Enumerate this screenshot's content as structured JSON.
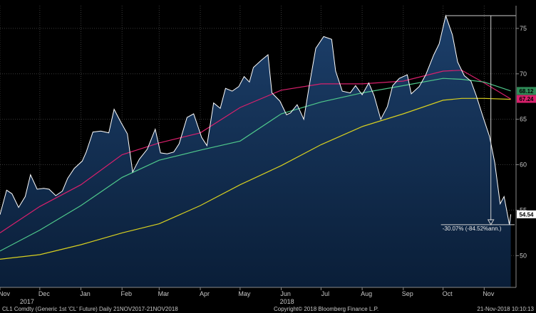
{
  "chart_data": {
    "type": "line",
    "xlim": [
      "2017-11-01",
      "2018-11-25"
    ],
    "ylim": [
      46.5,
      77.5
    ],
    "y_ticks": [
      50,
      55,
      60,
      65,
      70,
      75
    ],
    "y_tick_labels": [
      "50",
      "55",
      "60",
      "65",
      "70",
      "75"
    ],
    "x_ticks": [
      {
        "label": "Nov",
        "date": "2017-11-01"
      },
      {
        "label": "Dec",
        "date": "2017-12-01"
      },
      {
        "label": "Jan",
        "date": "2018-01-01"
      },
      {
        "label": "Feb",
        "date": "2018-02-01"
      },
      {
        "label": "Mar",
        "date": "2018-03-01"
      },
      {
        "label": "Apr",
        "date": "2018-04-01"
      },
      {
        "label": "May",
        "date": "2018-05-01"
      },
      {
        "label": "Jun",
        "date": "2018-06-01"
      },
      {
        "label": "Jul",
        "date": "2018-07-01"
      },
      {
        "label": "Aug",
        "date": "2018-08-01"
      },
      {
        "label": "Sep",
        "date": "2018-09-01"
      },
      {
        "label": "Oct",
        "date": "2018-10-01"
      },
      {
        "label": "Nov",
        "date": "2018-11-01"
      }
    ],
    "year_labels": [
      {
        "label": "2017",
        "date": "2017-12-01"
      },
      {
        "label": "2018",
        "date": "2018-06-15"
      }
    ],
    "grid": true,
    "y_axis_position": "right",
    "colors": {
      "price": "#ffffff",
      "fill_top": "#1c3f6a",
      "fill_bottom": "#0a1e38",
      "ma_pink": "#d8206c",
      "ma_green": "#4fc98c",
      "ma_yellow": "#d8d020",
      "grid": "#3a3a3a"
    },
    "series": [
      {
        "key": "price",
        "points": [
          [
            "2017-11-01",
            54.5
          ],
          [
            "2017-11-06",
            57.2
          ],
          [
            "2017-11-10",
            56.8
          ],
          [
            "2017-11-15",
            55.3
          ],
          [
            "2017-11-20",
            56.5
          ],
          [
            "2017-11-24",
            58.9
          ],
          [
            "2017-11-29",
            57.3
          ],
          [
            "2017-12-04",
            57.4
          ],
          [
            "2017-12-08",
            57.3
          ],
          [
            "2017-12-13",
            56.6
          ],
          [
            "2017-12-18",
            57.1
          ],
          [
            "2017-12-22",
            58.5
          ],
          [
            "2017-12-27",
            59.6
          ],
          [
            "2018-01-02",
            60.4
          ],
          [
            "2018-01-05",
            61.4
          ],
          [
            "2018-01-10",
            63.6
          ],
          [
            "2018-01-16",
            63.7
          ],
          [
            "2018-01-22",
            63.5
          ],
          [
            "2018-01-26",
            66.1
          ],
          [
            "2018-01-31",
            64.7
          ],
          [
            "2018-02-05",
            63.4
          ],
          [
            "2018-02-09",
            59.2
          ],
          [
            "2018-02-14",
            60.6
          ],
          [
            "2018-02-20",
            61.7
          ],
          [
            "2018-02-26",
            63.9
          ],
          [
            "2018-03-02",
            61.3
          ],
          [
            "2018-03-07",
            61.2
          ],
          [
            "2018-03-12",
            61.4
          ],
          [
            "2018-03-16",
            62.3
          ],
          [
            "2018-03-22",
            65.2
          ],
          [
            "2018-03-27",
            65.6
          ],
          [
            "2018-04-02",
            63.0
          ],
          [
            "2018-04-06",
            62.1
          ],
          [
            "2018-04-11",
            66.8
          ],
          [
            "2018-04-16",
            66.2
          ],
          [
            "2018-04-20",
            68.4
          ],
          [
            "2018-04-25",
            68.1
          ],
          [
            "2018-04-30",
            68.6
          ],
          [
            "2018-05-04",
            69.7
          ],
          [
            "2018-05-08",
            69.1
          ],
          [
            "2018-05-11",
            70.7
          ],
          [
            "2018-05-17",
            71.5
          ],
          [
            "2018-05-22",
            72.1
          ],
          [
            "2018-05-25",
            67.9
          ],
          [
            "2018-05-31",
            67.0
          ],
          [
            "2018-06-05",
            65.5
          ],
          [
            "2018-06-08",
            65.7
          ],
          [
            "2018-06-13",
            66.6
          ],
          [
            "2018-06-18",
            65.0
          ],
          [
            "2018-06-22",
            68.6
          ],
          [
            "2018-06-27",
            72.8
          ],
          [
            "2018-07-03",
            74.1
          ],
          [
            "2018-07-09",
            73.8
          ],
          [
            "2018-07-12",
            70.3
          ],
          [
            "2018-07-17",
            68.1
          ],
          [
            "2018-07-23",
            67.9
          ],
          [
            "2018-07-27",
            68.7
          ],
          [
            "2018-08-01",
            67.7
          ],
          [
            "2018-08-06",
            69.0
          ],
          [
            "2018-08-10",
            67.6
          ],
          [
            "2018-08-15",
            65.0
          ],
          [
            "2018-08-20",
            66.4
          ],
          [
            "2018-08-24",
            68.7
          ],
          [
            "2018-08-29",
            69.5
          ],
          [
            "2018-09-04",
            69.9
          ],
          [
            "2018-09-07",
            67.8
          ],
          [
            "2018-09-13",
            68.6
          ],
          [
            "2018-09-18",
            69.9
          ],
          [
            "2018-09-24",
            72.1
          ],
          [
            "2018-09-28",
            73.3
          ],
          [
            "2018-10-03",
            76.4
          ],
          [
            "2018-10-08",
            74.3
          ],
          [
            "2018-10-12",
            71.3
          ],
          [
            "2018-10-17",
            69.8
          ],
          [
            "2018-10-22",
            69.2
          ],
          [
            "2018-10-26",
            67.6
          ],
          [
            "2018-10-31",
            65.3
          ],
          [
            "2018-11-05",
            63.1
          ],
          [
            "2018-11-09",
            60.2
          ],
          [
            "2018-11-13",
            55.7
          ],
          [
            "2018-11-16",
            56.5
          ],
          [
            "2018-11-20",
            53.4
          ],
          [
            "2018-11-21",
            54.54
          ]
        ]
      },
      {
        "key": "ma_pink",
        "points": [
          [
            "2017-11-01",
            52.5
          ],
          [
            "2017-12-01",
            55.4
          ],
          [
            "2018-01-01",
            57.8
          ],
          [
            "2018-02-01",
            61.1
          ],
          [
            "2018-03-01",
            62.4
          ],
          [
            "2018-04-01",
            63.5
          ],
          [
            "2018-05-01",
            66.3
          ],
          [
            "2018-06-01",
            68.2
          ],
          [
            "2018-07-01",
            68.9
          ],
          [
            "2018-08-01",
            68.9
          ],
          [
            "2018-09-01",
            69.2
          ],
          [
            "2018-10-01",
            70.3
          ],
          [
            "2018-10-15",
            70.4
          ],
          [
            "2018-11-01",
            69.0
          ],
          [
            "2018-11-21",
            67.24
          ]
        ]
      },
      {
        "key": "ma_green",
        "points": [
          [
            "2017-11-01",
            50.5
          ],
          [
            "2017-12-01",
            52.8
          ],
          [
            "2018-01-01",
            55.5
          ],
          [
            "2018-02-01",
            58.6
          ],
          [
            "2018-03-01",
            60.5
          ],
          [
            "2018-04-01",
            61.6
          ],
          [
            "2018-05-01",
            62.6
          ],
          [
            "2018-06-01",
            65.6
          ],
          [
            "2018-07-01",
            66.9
          ],
          [
            "2018-08-01",
            67.9
          ],
          [
            "2018-09-01",
            68.7
          ],
          [
            "2018-10-01",
            69.5
          ],
          [
            "2018-10-15",
            69.4
          ],
          [
            "2018-11-01",
            69.1
          ],
          [
            "2018-11-21",
            68.12
          ]
        ]
      },
      {
        "key": "ma_yellow",
        "points": [
          [
            "2017-11-01",
            49.6
          ],
          [
            "2017-12-01",
            50.1
          ],
          [
            "2018-01-01",
            51.2
          ],
          [
            "2018-02-01",
            52.5
          ],
          [
            "2018-03-01",
            53.5
          ],
          [
            "2018-04-01",
            55.5
          ],
          [
            "2018-05-01",
            57.8
          ],
          [
            "2018-06-01",
            59.9
          ],
          [
            "2018-07-01",
            62.2
          ],
          [
            "2018-08-01",
            64.2
          ],
          [
            "2018-09-01",
            65.6
          ],
          [
            "2018-10-01",
            67.1
          ],
          [
            "2018-10-15",
            67.3
          ],
          [
            "2018-11-01",
            67.3
          ],
          [
            "2018-11-21",
            67.2
          ]
        ]
      }
    ],
    "last_values": [
      {
        "key": "ma_green",
        "value": "68.12",
        "bg": "#2e8b57",
        "fg": "#000000"
      },
      {
        "key": "ma_pink",
        "value": "67.24",
        "bg": "#d8206c",
        "fg": "#000000"
      },
      {
        "key": "price",
        "value": "54.54",
        "bg": "#ffffff",
        "fg": "#000000"
      }
    ],
    "annotation": {
      "text": "-30.07% (-84.52%ann.)",
      "peak": {
        "date": "2018-10-03",
        "value": 76.4
      },
      "trough": {
        "date": "2018-11-20",
        "value": 53.4
      }
    }
  },
  "footer": {
    "left": "CL1 Comdty (Generic 1st 'CL' Future)  Daily 21NOV2017-21NOV2018",
    "center": "Copyright© 2018 Bloomberg Finance L.P.",
    "right": "21-Nov-2018 10:10:13"
  }
}
